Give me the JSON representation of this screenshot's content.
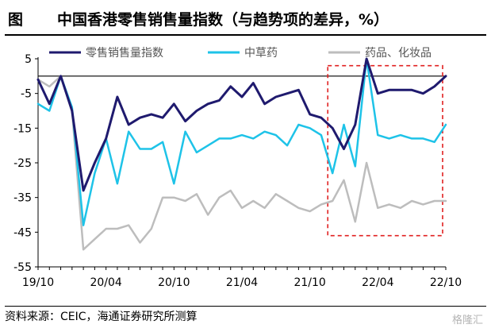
{
  "figure": {
    "label": "图",
    "title": "中国香港零售销售量指数（与趋势项的差异，%）"
  },
  "source": "资料来源：CEIC，海通证券研究所测算",
  "watermark": "格隆汇",
  "colors": {
    "retail": "#1f1a6e",
    "herbal": "#1ec3e8",
    "drugs": "#bdbdbd",
    "highlight": "#e02020"
  },
  "chart_data": {
    "type": "line",
    "ylim": [
      -55,
      5
    ],
    "yticks": [
      5,
      -5,
      -15,
      -25,
      -35,
      -45,
      -55
    ],
    "x_start": "2019-10",
    "x_end": "2022-10",
    "xtick_labels": [
      "19/10",
      "20/04",
      "20/10",
      "21/04",
      "21/10",
      "22/04",
      "22/10"
    ],
    "highlight_range": [
      "2021-12",
      "2022-10"
    ],
    "series": [
      {
        "name": "零售销售量指数",
        "x": [
          "2019-10",
          "2019-11",
          "2019-12",
          "2020-01",
          "2020-02",
          "2020-03",
          "2020-04",
          "2020-05",
          "2020-06",
          "2020-07",
          "2020-08",
          "2020-09",
          "2020-10",
          "2020-11",
          "2020-12",
          "2021-01",
          "2021-02",
          "2021-03",
          "2021-04",
          "2021-05",
          "2021-06",
          "2021-07",
          "2021-08",
          "2021-09",
          "2021-10",
          "2021-11",
          "2021-12",
          "2022-01",
          "2022-02",
          "2022-03",
          "2022-04",
          "2022-05",
          "2022-06",
          "2022-07",
          "2022-08",
          "2022-09",
          "2022-10"
        ],
        "values": [
          -1,
          -8,
          0,
          -10,
          -33,
          -25,
          -18,
          -6,
          -14,
          -12,
          -11,
          -12,
          -8,
          -13,
          -10,
          -8,
          -7,
          -3,
          -6,
          -2,
          -8,
          -6,
          -5,
          -4,
          -11,
          -12,
          -15,
          -21,
          -14,
          5,
          -5,
          -4,
          -4,
          -4,
          -5,
          -3,
          0
        ]
      },
      {
        "name": "中草药",
        "x": [
          "2019-10",
          "2019-11",
          "2019-12",
          "2020-01",
          "2020-02",
          "2020-03",
          "2020-04",
          "2020-05",
          "2020-06",
          "2020-07",
          "2020-08",
          "2020-09",
          "2020-10",
          "2020-11",
          "2020-12",
          "2021-01",
          "2021-02",
          "2021-03",
          "2021-04",
          "2021-05",
          "2021-06",
          "2021-07",
          "2021-08",
          "2021-09",
          "2021-10",
          "2021-11",
          "2021-12",
          "2022-01",
          "2022-02",
          "2022-03",
          "2022-04",
          "2022-05",
          "2022-06",
          "2022-07",
          "2022-08",
          "2022-09",
          "2022-10"
        ],
        "values": [
          -8,
          -10,
          0,
          -9,
          -43,
          -28,
          -18,
          -31,
          -16,
          -21,
          -21,
          -19,
          -31,
          -16,
          -22,
          -20,
          -18,
          -18,
          -17,
          -18,
          -16,
          -17,
          -20,
          -14,
          -15,
          -17,
          -28,
          -14,
          -26,
          5,
          -17,
          -18,
          -17,
          -18,
          -18,
          -19,
          -14
        ]
      },
      {
        "name": "药品、化妆品",
        "x": [
          "2019-10",
          "2019-11",
          "2019-12",
          "2020-01",
          "2020-02",
          "2020-03",
          "2020-04",
          "2020-05",
          "2020-06",
          "2020-07",
          "2020-08",
          "2020-09",
          "2020-10",
          "2020-11",
          "2020-12",
          "2021-01",
          "2021-02",
          "2021-03",
          "2021-04",
          "2021-05",
          "2021-06",
          "2021-07",
          "2021-08",
          "2021-09",
          "2021-10",
          "2021-11",
          "2021-12",
          "2022-01",
          "2022-02",
          "2022-03",
          "2022-04",
          "2022-05",
          "2022-06",
          "2022-07",
          "2022-08",
          "2022-09",
          "2022-10"
        ],
        "values": [
          -1,
          -3,
          0,
          -10,
          -50,
          -47,
          -44,
          -44,
          -43,
          -48,
          -44,
          -35,
          -35,
          -36,
          -34,
          -40,
          -35,
          -33,
          -38,
          -36,
          -38,
          -34,
          -36,
          -38,
          -39,
          -37,
          -36,
          -30,
          -42,
          -25,
          -38,
          -37,
          -38,
          -36,
          -37,
          -36,
          -36
        ]
      }
    ]
  }
}
